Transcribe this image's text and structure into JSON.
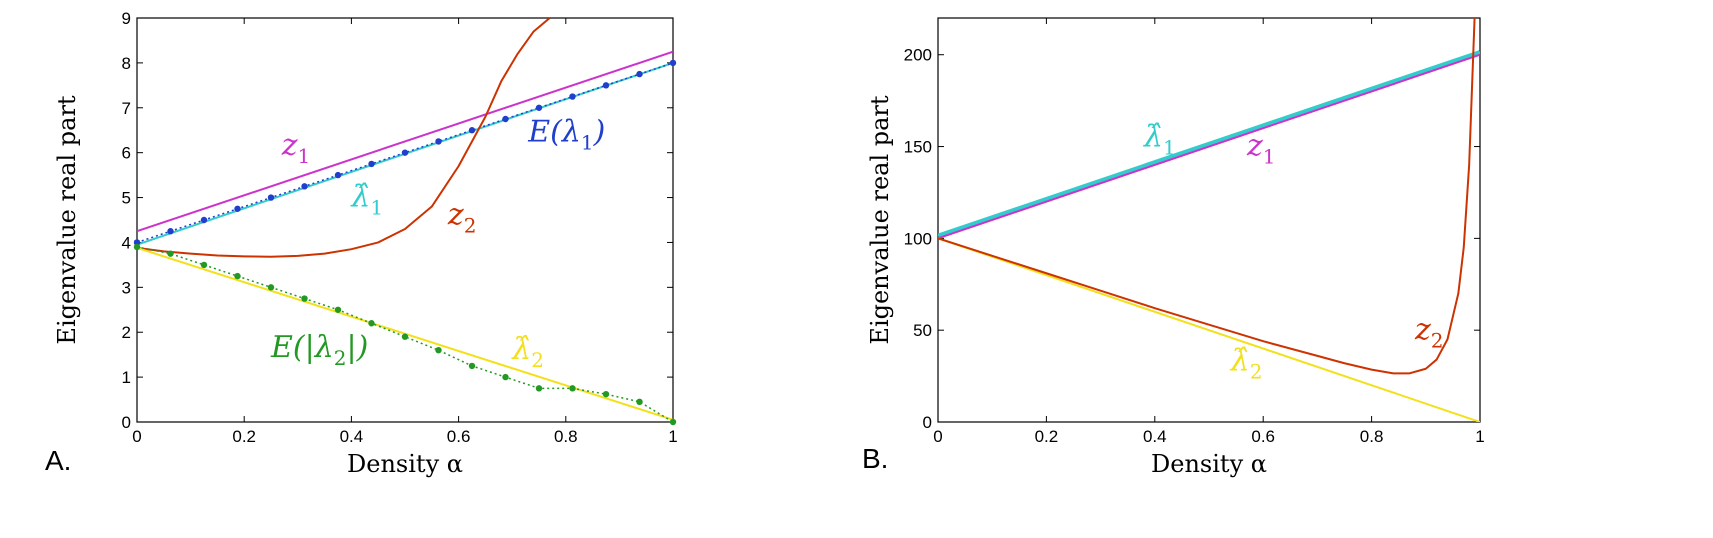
{
  "chart_data": [
    {
      "type": "line",
      "panel_label": "A.",
      "xlabel": "Density α",
      "ylabel": "Eigenvalue real part",
      "xlim": [
        0,
        1
      ],
      "ylim": [
        0,
        9
      ],
      "xticks": [
        "0",
        "0.2",
        "0.4",
        "0.6",
        "0.8",
        "1"
      ],
      "xtick_values": [
        0,
        0.2,
        0.4,
        0.6,
        0.8,
        1
      ],
      "yticks": [
        "0",
        "1",
        "2",
        "3",
        "4",
        "5",
        "6",
        "7",
        "8",
        "9"
      ],
      "ytick_values": [
        0,
        1,
        2,
        3,
        4,
        5,
        6,
        7,
        8,
        9
      ],
      "series": [
        {
          "name": "z1",
          "color": "#cc33cc",
          "style": "solid",
          "x": [
            0,
            1
          ],
          "y": [
            4.25,
            8.25
          ]
        },
        {
          "name": "λ̂1",
          "color": "#33cccc",
          "style": "solid",
          "x": [
            0,
            1
          ],
          "y": [
            3.95,
            8.0
          ]
        },
        {
          "name": "E(λ1)",
          "color": "#1f3fcc",
          "style": "dotted",
          "markers": true,
          "x": [
            0,
            0.0625,
            0.125,
            0.1875,
            0.25,
            0.3125,
            0.375,
            0.4375,
            0.5,
            0.5625,
            0.625,
            0.6875,
            0.75,
            0.8125,
            0.875,
            0.9375,
            1
          ],
          "y": [
            4.0,
            4.25,
            4.5,
            4.75,
            5.0,
            5.25,
            5.5,
            5.75,
            6.0,
            6.25,
            6.5,
            6.75,
            7.0,
            7.25,
            7.5,
            7.75,
            8.0
          ]
        },
        {
          "name": "z2",
          "color": "#cc3300",
          "style": "solid",
          "x": [
            0,
            0.05,
            0.1,
            0.15,
            0.2,
            0.25,
            0.3,
            0.35,
            0.4,
            0.45,
            0.5,
            0.55,
            0.6,
            0.65,
            0.68,
            0.71,
            0.74,
            0.77
          ],
          "y": [
            3.88,
            3.8,
            3.75,
            3.71,
            3.69,
            3.68,
            3.7,
            3.75,
            3.85,
            4.0,
            4.3,
            4.8,
            5.7,
            6.8,
            7.6,
            8.2,
            8.7,
            9.0
          ]
        },
        {
          "name": "λ̂2",
          "color": "#f2e01a",
          "style": "solid",
          "x": [
            0,
            1
          ],
          "y": [
            3.88,
            0.05
          ]
        },
        {
          "name": "E(|λ2|)",
          "color": "#229922",
          "style": "dotted",
          "markers": true,
          "x": [
            0,
            0.0625,
            0.125,
            0.1875,
            0.25,
            0.3125,
            0.375,
            0.4375,
            0.5,
            0.5625,
            0.625,
            0.6875,
            0.75,
            0.8125,
            0.875,
            0.9375,
            1
          ],
          "y": [
            3.9,
            3.75,
            3.5,
            3.25,
            3.0,
            2.75,
            2.5,
            2.2,
            1.9,
            1.6,
            1.25,
            1.0,
            0.75,
            0.75,
            0.62,
            0.45,
            0.0
          ]
        }
      ],
      "annotations": [
        {
          "main": "z",
          "sub": "1",
          "color": "#cc33cc",
          "x": 0.27,
          "y": 5.95
        },
        {
          "main": "E(λ",
          "sub": "1",
          "tail": ")",
          "color": "#1f3fcc",
          "x": 0.73,
          "y": 6.25
        },
        {
          "main": "λ̂",
          "sub": "1",
          "color": "#33cccc",
          "x": 0.4,
          "y": 4.8
        },
        {
          "main": "z",
          "sub": "2",
          "color": "#cc3300",
          "x": 0.58,
          "y": 4.4
        },
        {
          "main": "E(|λ",
          "sub": "2",
          "tail": "|)",
          "color": "#229922",
          "x": 0.25,
          "y": 1.45
        },
        {
          "main": "λ̂",
          "sub": "2",
          "color": "#f2e01a",
          "x": 0.7,
          "y": 1.4
        }
      ]
    },
    {
      "type": "line",
      "panel_label": "B.",
      "xlabel": "Density α",
      "ylabel": "Eigenvalue real part",
      "xlim": [
        0,
        1
      ],
      "ylim": [
        0,
        220
      ],
      "xticks": [
        "0",
        "0.2",
        "0.4",
        "0.6",
        "0.8",
        "1"
      ],
      "xtick_values": [
        0,
        0.2,
        0.4,
        0.6,
        0.8,
        1
      ],
      "yticks": [
        "0",
        "50",
        "100",
        "150",
        "200"
      ],
      "ytick_values": [
        0,
        50,
        100,
        150,
        200
      ],
      "series": [
        {
          "name": "λ̂1",
          "color": "#33cccc",
          "style": "solid",
          "width": 4,
          "x": [
            0,
            1
          ],
          "y": [
            101.5,
            201.5
          ]
        },
        {
          "name": "z1",
          "color": "#cc33cc",
          "style": "solid",
          "x": [
            0,
            1
          ],
          "y": [
            100,
            200
          ]
        },
        {
          "name": "λ̂2",
          "color": "#f2e01a",
          "style": "solid",
          "x": [
            0,
            1
          ],
          "y": [
            100,
            0
          ]
        },
        {
          "name": "z2",
          "color": "#cc3300",
          "style": "solid",
          "x": [
            0,
            0.1,
            0.2,
            0.3,
            0.4,
            0.5,
            0.6,
            0.7,
            0.75,
            0.8,
            0.84,
            0.87,
            0.9,
            0.92,
            0.94,
            0.96,
            0.97,
            0.98,
            0.99
          ],
          "y": [
            100,
            90.5,
            81,
            71.5,
            62,
            53,
            44,
            36,
            32,
            28.5,
            26.5,
            26.5,
            29,
            34,
            45,
            70,
            95,
            140,
            220
          ]
        }
      ],
      "annotations": [
        {
          "main": "λ̂",
          "sub": "1",
          "color": "#33cccc",
          "x": 0.38,
          "y": 150
        },
        {
          "main": "z",
          "sub": "1",
          "color": "#cc33cc",
          "x": 0.57,
          "y": 145
        },
        {
          "main": "z",
          "sub": "2",
          "color": "#cc3300",
          "x": 0.88,
          "y": 45
        },
        {
          "main": "λ̂",
          "sub": "2",
          "color": "#f2e01a",
          "x": 0.54,
          "y": 28
        }
      ]
    }
  ]
}
